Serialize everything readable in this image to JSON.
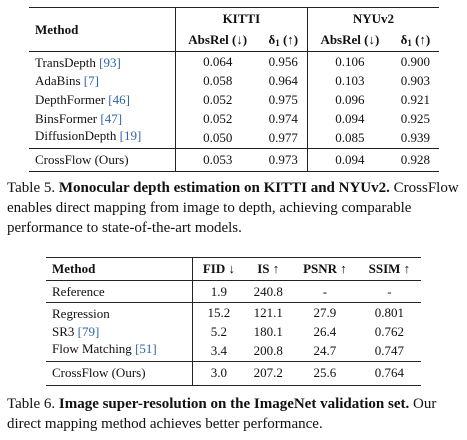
{
  "table5": {
    "method_header": "Method",
    "groups": [
      "KITTI",
      "NYUv2"
    ],
    "subheaders": [
      "AbsRel (↓)",
      "δ",
      "1",
      " (↑)"
    ],
    "rows": [
      {
        "name": "TransDepth ",
        "cite": "[93]",
        "v": [
          "0.064",
          "0.956",
          "0.106",
          "0.900"
        ]
      },
      {
        "name": "AdaBins ",
        "cite": "[7]",
        "v": [
          "0.058",
          "0.964",
          "0.103",
          "0.903"
        ]
      },
      {
        "name": "DepthFormer ",
        "cite": "[46]",
        "v": [
          "0.052",
          "0.975",
          "0.096",
          "0.921"
        ]
      },
      {
        "name": "BinsFormer ",
        "cite": "[47]",
        "v": [
          "0.052",
          "0.974",
          "0.094",
          "0.925"
        ]
      },
      {
        "name": "DiffusionDepth ",
        "cite": "[19]",
        "v": [
          "0.050",
          "0.977",
          "0.085",
          "0.939"
        ]
      }
    ],
    "ours": {
      "name": "CrossFlow (Ours)",
      "v": [
        "0.053",
        "0.973",
        "0.094",
        "0.928"
      ]
    }
  },
  "caption5": {
    "label": "Table 5.",
    "title": "Monocular depth estimation on KITTI and NYUv2.",
    "text": "CrossFlow enables direct mapping from image to depth, achieving comparable performance to state-of-the-art models."
  },
  "table6": {
    "headers": [
      "Method",
      "FID ↓",
      "IS ↑",
      "PSNR ↑",
      "SSIM ↑"
    ],
    "reference": {
      "name": "Reference",
      "v": [
        "1.9",
        "240.8",
        "-",
        "-"
      ]
    },
    "rows": [
      {
        "name": "Regression",
        "cite": "",
        "v": [
          "15.2",
          "121.1",
          "27.9",
          "0.801"
        ]
      },
      {
        "name": "SR3 ",
        "cite": "[79]",
        "v": [
          "5.2",
          "180.1",
          "26.4",
          "0.762"
        ]
      },
      {
        "name": "Flow Matching ",
        "cite": "[51]",
        "v": [
          "3.4",
          "200.8",
          "24.7",
          "0.747"
        ]
      }
    ],
    "ours": {
      "name": "CrossFlow (Ours)",
      "v": [
        "3.0",
        "207.2",
        "25.6",
        "0.764"
      ]
    }
  },
  "caption6": {
    "label": "Table 6.",
    "title": "Image super-resolution on the ImageNet validation set.",
    "text": "Our direct mapping method achieves better performance."
  }
}
